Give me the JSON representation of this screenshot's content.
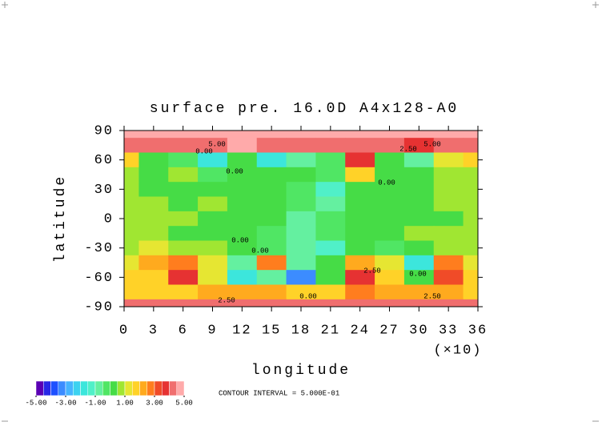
{
  "chart_data": {
    "type": "contour",
    "title": "surface pre. 16.0D A4x128-A0",
    "x_label": "longitude",
    "x_unit": "(×10)",
    "y_label": "latitude",
    "xlim": [
      0,
      36
    ],
    "xticks": [
      0,
      3,
      6,
      9,
      12,
      15,
      18,
      21,
      24,
      27,
      30,
      33,
      36
    ],
    "ylim": [
      -90,
      90
    ],
    "yticks": [
      90,
      60,
      30,
      0,
      -30,
      -60,
      -90
    ],
    "x": [
      0,
      3,
      6,
      9,
      12,
      15,
      18,
      21,
      24,
      27,
      30,
      33,
      36
    ],
    "y": [
      90,
      75,
      60,
      45,
      30,
      15,
      0,
      -15,
      -30,
      -45,
      -60,
      -75,
      -90
    ],
    "z": [
      [
        4.5,
        4.5,
        4.5,
        4.5,
        4.5,
        4.5,
        4.5,
        4.5,
        4.5,
        4.5,
        4.5,
        4.5,
        4.5
      ],
      [
        4,
        4,
        4,
        4,
        4.5,
        4,
        4,
        4,
        4,
        4,
        3.5,
        4,
        4
      ],
      [
        1.5,
        0,
        -0.5,
        -2,
        0,
        -2,
        -1,
        -0.5,
        3.5,
        0,
        -1,
        1,
        1.5
      ],
      [
        0.5,
        0,
        0.5,
        -0.5,
        0,
        0,
        0,
        -0.5,
        1.5,
        0,
        0,
        0.5,
        0.5
      ],
      [
        0.5,
        0,
        0,
        0,
        0,
        0,
        -0.5,
        -1.5,
        0,
        0,
        0,
        0.5,
        0.5
      ],
      [
        0.5,
        0.5,
        0,
        0.5,
        0,
        0,
        -0.5,
        -1,
        0,
        0,
        0,
        0.5,
        0.5
      ],
      [
        0.5,
        0.5,
        0.5,
        0,
        0,
        0,
        -1,
        -0.5,
        0,
        0,
        0,
        0,
        0.5
      ],
      [
        0.5,
        0.5,
        0,
        0,
        0,
        -0.5,
        -1,
        -0.5,
        0,
        0,
        0.5,
        0.5,
        0.5
      ],
      [
        0.5,
        1,
        0.5,
        0.5,
        0,
        -0.5,
        -1,
        -1.5,
        0,
        -0.5,
        0,
        0.5,
        0.5
      ],
      [
        1,
        2,
        2.5,
        1,
        -1,
        2.5,
        -1,
        0,
        2,
        1,
        -2,
        2.5,
        1
      ],
      [
        1.5,
        1.5,
        3.5,
        1,
        -2,
        -1,
        -3.5,
        0,
        3.5,
        1.5,
        0,
        3,
        1.5
      ],
      [
        1.5,
        1.5,
        1.5,
        2,
        2,
        2,
        1.5,
        1.5,
        2.5,
        2,
        2,
        2,
        1.5
      ],
      [
        4,
        4,
        4,
        4,
        4,
        4,
        4,
        4,
        4,
        4,
        4,
        4,
        4
      ]
    ],
    "contour_labels": [
      "5.00",
      "0.00",
      "0.00",
      "2.50",
      "5.00",
      "0.00",
      "0.00",
      "0.00",
      "2.50",
      "0.00",
      "0.00",
      "2.50",
      "2.50"
    ],
    "contour_interval": "CONTOUR INTERVAL = 5.000E-01",
    "colorbar": {
      "lim": [
        -5,
        5
      ],
      "ticks": [
        {
          "value": -5,
          "label": "-5.00"
        },
        {
          "value": -3,
          "label": "-3.00"
        },
        {
          "value": -1,
          "label": "-1.00"
        },
        {
          "value": 1,
          "label": "1.00"
        },
        {
          "value": 3,
          "label": "3.00"
        },
        {
          "value": 5,
          "label": "5.00"
        }
      ],
      "colors": [
        "#5a00b4",
        "#2828e6",
        "#1e50ff",
        "#3c8cff",
        "#46b4ff",
        "#3cd2f0",
        "#3ce6dc",
        "#50f0c8",
        "#64f0a0",
        "#50e664",
        "#46dc46",
        "#a0e632",
        "#e6e632",
        "#ffd228",
        "#ffaa1e",
        "#ff7d1e",
        "#f04b28",
        "#e63232",
        "#f06e6e",
        "#ffaaaa"
      ]
    }
  }
}
